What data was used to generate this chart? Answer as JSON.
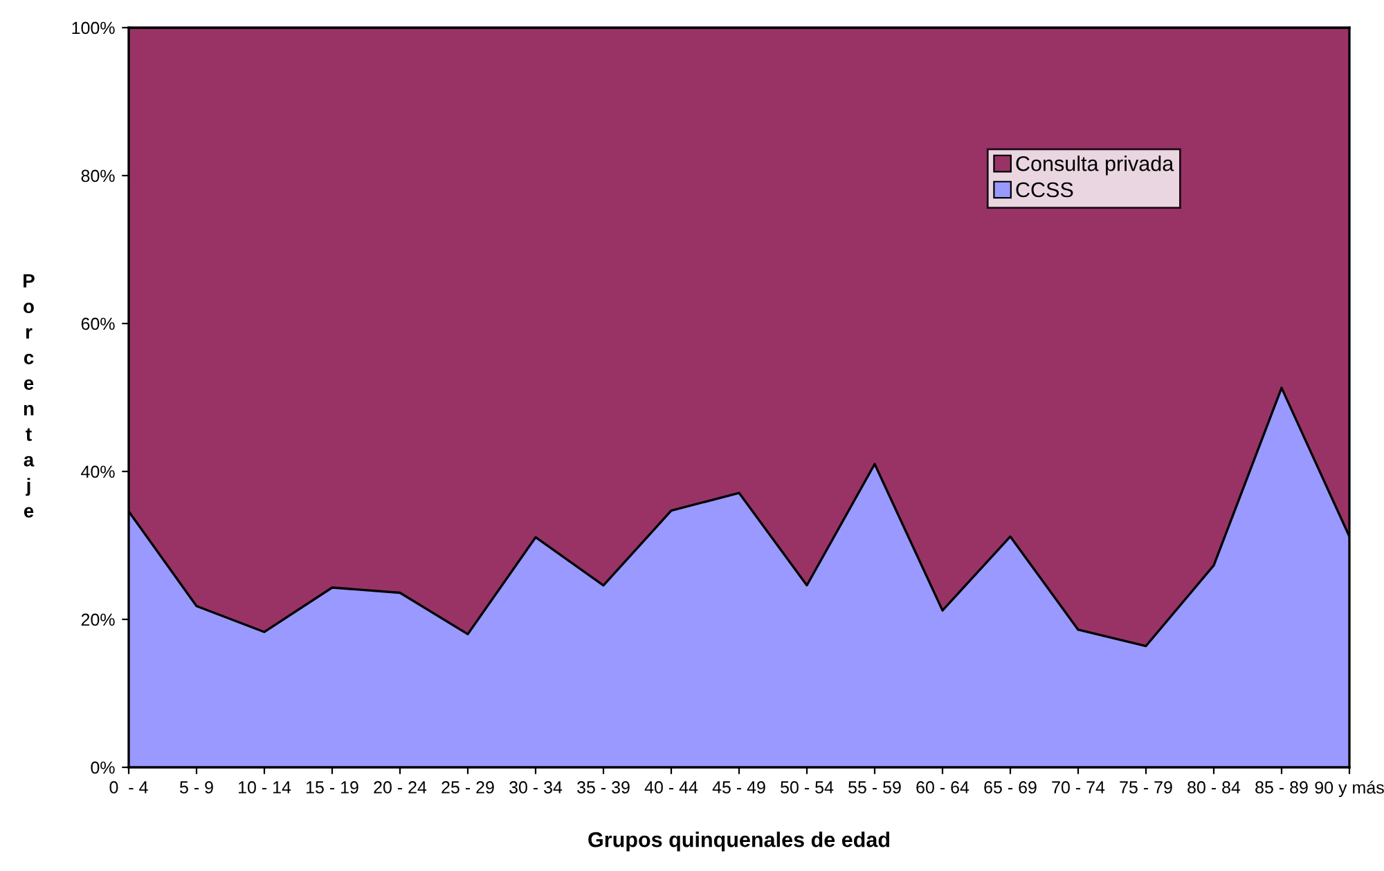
{
  "chart_data": {
    "type": "area",
    "stacked": true,
    "xlabel": "Grupos quinquenales de edad",
    "ylabel": "Porcentaje",
    "categories": [
      "0  - 4",
      "5 - 9",
      "10 - 14",
      "15 - 19",
      "20 - 24",
      "25 - 29",
      "30 - 34",
      "35 - 39",
      "40 - 44",
      "45 - 49",
      "50 - 54",
      "55 - 59",
      "60 - 64",
      "65 - 69",
      "70 - 74",
      "75 - 79",
      "80 - 84",
      "85 - 89",
      "90 y más"
    ],
    "series": [
      {
        "name": "CCSS",
        "color": "#9999ff",
        "values": [
          34.6,
          21.8,
          18.3,
          24.3,
          23.6,
          18.0,
          31.1,
          24.6,
          34.7,
          37.1,
          24.6,
          41.0,
          21.2,
          31.2,
          18.6,
          16.4,
          27.3,
          51.3,
          31.2
        ]
      },
      {
        "name": "Consulta privada",
        "color": "#993366",
        "values": [
          65.4,
          78.2,
          81.7,
          75.7,
          76.4,
          82.0,
          68.9,
          75.4,
          65.3,
          62.9,
          75.4,
          59.0,
          78.8,
          68.8,
          81.4,
          83.6,
          72.7,
          48.7,
          68.8
        ]
      }
    ],
    "ylim": [
      0,
      100
    ],
    "yticks": [
      {
        "value": 0,
        "label": "0%"
      },
      {
        "value": 20,
        "label": "20%"
      },
      {
        "value": 40,
        "label": "40%"
      },
      {
        "value": 60,
        "label": "60%"
      },
      {
        "value": 80,
        "label": "80%"
      },
      {
        "value": 100,
        "label": "100%"
      }
    ],
    "grid": false,
    "legend": "top right"
  }
}
